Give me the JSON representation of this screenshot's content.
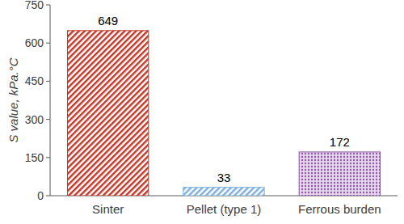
{
  "chart_data": {
    "type": "bar",
    "ylabel": "S value, kPa.°C",
    "categories": [
      "Sinter",
      "Pellet (type 1)",
      "Ferrous burden"
    ],
    "values": [
      649,
      33,
      172
    ],
    "colors": [
      "#c0392b",
      "#7fb0dc",
      "#8e5aa8"
    ],
    "ylim": [
      0,
      750
    ],
    "yticks": [
      0,
      150,
      300,
      450,
      600,
      750
    ],
    "data_labels": true,
    "grid": false
  }
}
